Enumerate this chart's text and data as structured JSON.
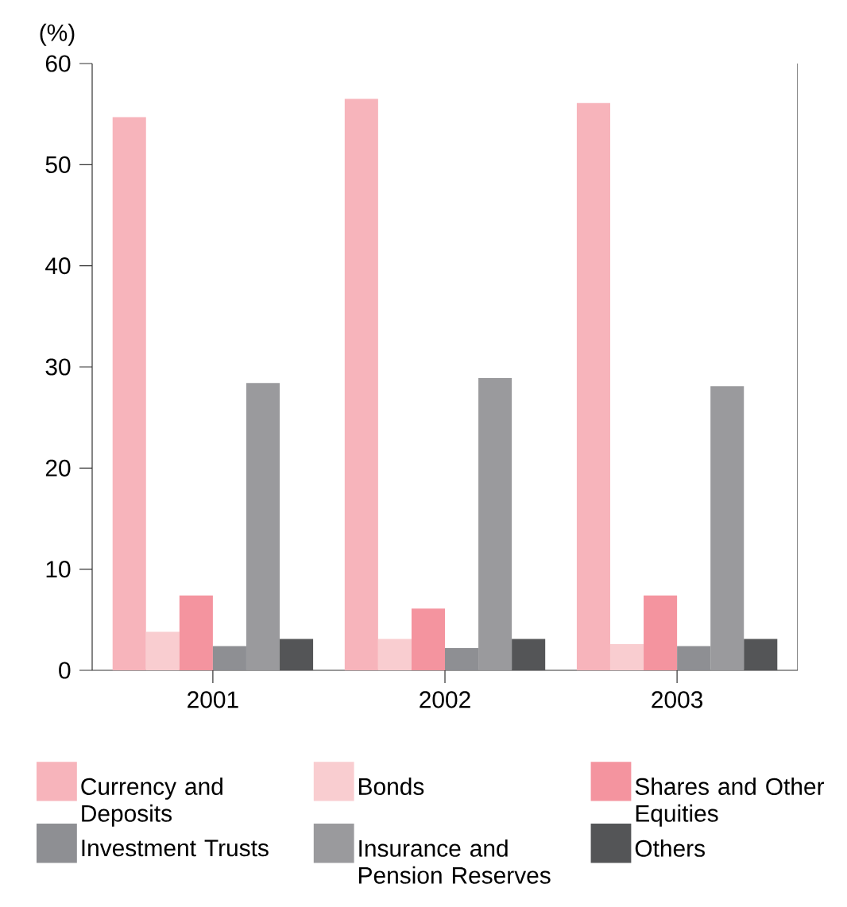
{
  "chart_data": {
    "type": "bar",
    "ylabel": "(%)",
    "categories": [
      "2001",
      "2002",
      "2003"
    ],
    "series": [
      {
        "name": "Currency and Deposits",
        "color": "#f7b4bb",
        "values": [
          54.7,
          56.5,
          56.1
        ]
      },
      {
        "name": "Bonds",
        "color": "#f9cdd0",
        "values": [
          3.8,
          3.1,
          2.6
        ]
      },
      {
        "name": "Shares and Other Equities",
        "color": "#f4949f",
        "values": [
          7.4,
          6.1,
          7.4
        ]
      },
      {
        "name": "Investment Trusts",
        "color": "#8e8f93",
        "values": [
          2.4,
          2.2,
          2.4
        ]
      },
      {
        "name": "Insurance and Pension Reserves",
        "color": "#9a9a9d",
        "values": [
          28.4,
          28.9,
          28.1
        ]
      },
      {
        "name": "Others",
        "color": "#545557",
        "values": [
          3.1,
          3.1,
          3.1
        ]
      }
    ],
    "ylim": [
      0,
      60
    ],
    "yticks": [
      0,
      10,
      20,
      30,
      40,
      50,
      60
    ],
    "grid": false,
    "legend": "bottom"
  }
}
